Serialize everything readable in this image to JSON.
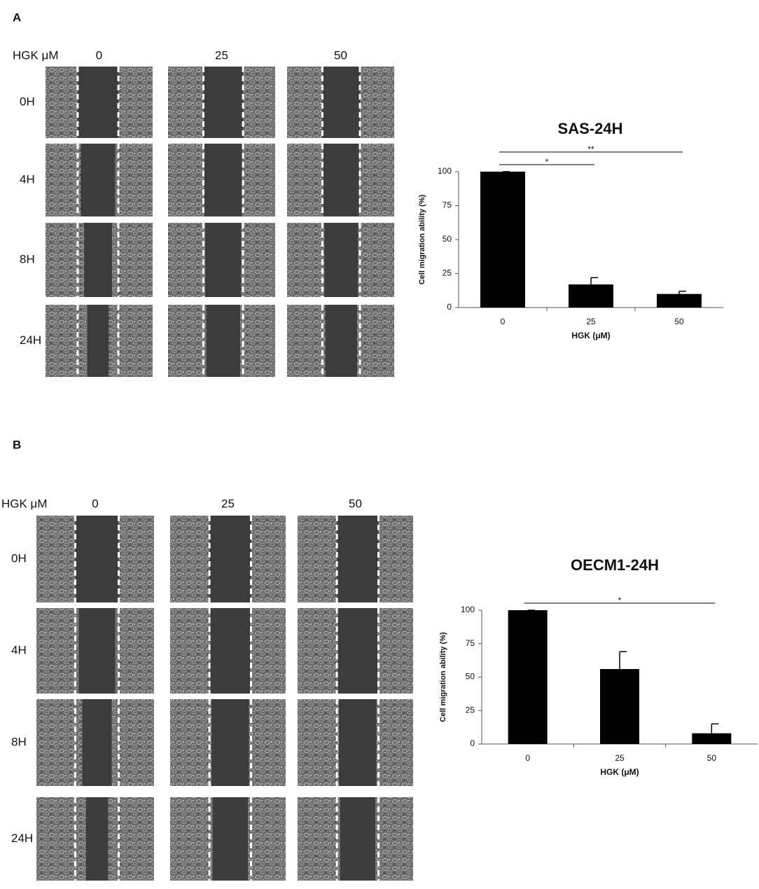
{
  "chart_data": [
    {
      "type": "bar",
      "title": "SAS-24H",
      "x_label": "HGK (μM)",
      "y_label": "Cell migration ability (%)",
      "categories": [
        "0",
        "25",
        "50"
      ],
      "values": [
        100,
        17,
        10
      ],
      "errors": [
        0,
        5,
        2
      ],
      "color": "#000000",
      "ylim": [
        0,
        100
      ],
      "yticks": [
        0,
        25,
        50,
        75,
        100
      ],
      "significance": [
        {
          "label": "*",
          "pair": [
            0,
            1
          ]
        },
        {
          "label": "**",
          "pair": [
            0,
            2
          ]
        }
      ]
    },
    {
      "type": "bar",
      "title": "OECM1-24H",
      "x_label": "HGK (μM)",
      "y_label": "Cell migration ability (%)",
      "categories": [
        "0",
        "25",
        "50"
      ],
      "values": [
        100,
        56,
        8
      ],
      "errors": [
        0,
        13,
        7
      ],
      "color": "#000000",
      "ylim": [
        0,
        100
      ],
      "yticks": [
        0,
        25,
        50,
        75,
        100
      ],
      "significance": [
        {
          "label": "*",
          "pair": [
            0,
            2
          ]
        }
      ]
    }
  ],
  "panels": [
    {
      "label": "A",
      "header": "HGK μM",
      "columns": [
        "0",
        "25",
        "50"
      ],
      "rows": [
        "0H",
        "4H",
        "8H",
        "24H"
      ]
    },
    {
      "label": "B",
      "header": "HGK μM",
      "columns": [
        "0",
        "25",
        "50"
      ],
      "rows": [
        "0H",
        "4H",
        "8H",
        "24H"
      ]
    }
  ]
}
